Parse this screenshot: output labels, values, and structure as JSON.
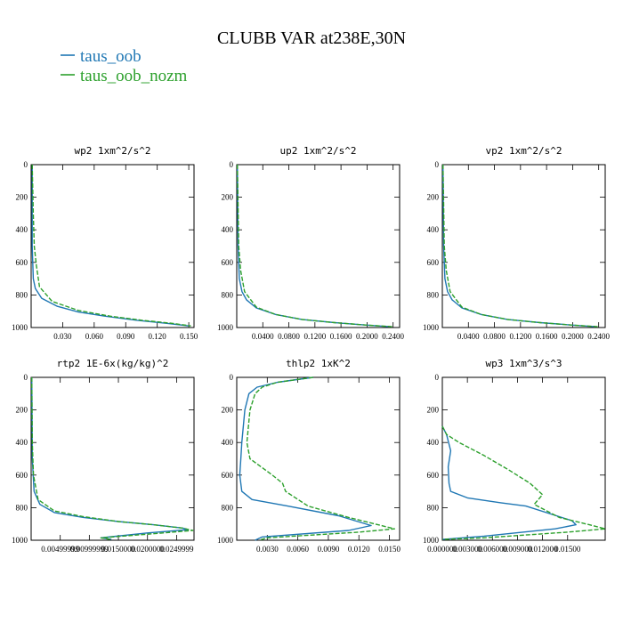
{
  "title": "CLUBB VAR at238E,30N",
  "legend": [
    {
      "label": "taus_oob",
      "color": "#1f77b4"
    },
    {
      "label": "taus_oob_nozm",
      "color": "#2ca02c"
    }
  ],
  "chart_data": [
    {
      "type": "line",
      "title": "wp2   1xm^2/s^2",
      "ylim": [
        1000,
        0
      ],
      "yticks": [
        0,
        200,
        400,
        600,
        800,
        1000
      ],
      "xlim": [
        0,
        0.155
      ],
      "xticks": [
        0.03,
        0.06,
        0.09,
        0.12,
        0.15
      ],
      "xticklabels": [
        "0.030",
        "0.060",
        "0.090",
        "0.120",
        "0.150"
      ],
      "series": [
        {
          "name": "taus_oob",
          "x": [
            0.001,
            0.001,
            0.002,
            0.004,
            0.01,
            0.025,
            0.045,
            0.07,
            0.1,
            0.13,
            0.15
          ],
          "y": [
            0,
            500,
            700,
            760,
            820,
            870,
            905,
            930,
            955,
            975,
            990
          ]
        },
        {
          "name": "taus_oob_nozm",
          "x": [
            0.001,
            0.002,
            0.003,
            0.005,
            0.008,
            0.02,
            0.045,
            0.075,
            0.105,
            0.135,
            0.152
          ],
          "y": [
            0,
            300,
            500,
            620,
            750,
            840,
            895,
            930,
            955,
            975,
            990
          ]
        }
      ]
    },
    {
      "type": "line",
      "title": "up2   1xm^2/s^2",
      "ylim": [
        1000,
        0
      ],
      "yticks": [
        0,
        200,
        400,
        600,
        800,
        1000
      ],
      "xlim": [
        0,
        0.25
      ],
      "xticks": [
        0.04,
        0.08,
        0.12,
        0.16,
        0.2,
        0.24
      ],
      "xticklabels": [
        "0.0400",
        "0.0800",
        "0.1200",
        "0.1600",
        "0.2000",
        "0.2400"
      ],
      "series": [
        {
          "name": "taus_oob",
          "x": [
            0.001,
            0.002,
            0.004,
            0.008,
            0.015,
            0.03,
            0.06,
            0.1,
            0.15,
            0.2,
            0.235
          ],
          "y": [
            0,
            500,
            700,
            780,
            830,
            880,
            920,
            950,
            970,
            985,
            995
          ]
        },
        {
          "name": "taus_oob_nozm",
          "x": [
            0.001,
            0.002,
            0.003,
            0.006,
            0.012,
            0.03,
            0.06,
            0.1,
            0.15,
            0.2,
            0.24
          ],
          "y": [
            0,
            250,
            500,
            650,
            780,
            875,
            920,
            950,
            970,
            985,
            995
          ]
        }
      ]
    },
    {
      "type": "line",
      "title": "vp2   1xm^2/s^2",
      "ylim": [
        1000,
        0
      ],
      "yticks": [
        0,
        200,
        400,
        600,
        800,
        1000
      ],
      "xlim": [
        0,
        0.25
      ],
      "xticks": [
        0.04,
        0.08,
        0.12,
        0.16,
        0.2,
        0.24
      ],
      "xticklabels": [
        "0.0400",
        "0.0800",
        "0.1200",
        "0.1600",
        "0.2000",
        "0.2400"
      ],
      "series": [
        {
          "name": "taus_oob",
          "x": [
            0.001,
            0.002,
            0.004,
            0.008,
            0.015,
            0.03,
            0.06,
            0.1,
            0.15,
            0.2,
            0.235
          ],
          "y": [
            0,
            500,
            700,
            780,
            830,
            880,
            920,
            950,
            970,
            985,
            995
          ]
        },
        {
          "name": "taus_oob_nozm",
          "x": [
            0.001,
            0.002,
            0.003,
            0.006,
            0.012,
            0.03,
            0.06,
            0.1,
            0.15,
            0.2,
            0.24
          ],
          "y": [
            0,
            250,
            500,
            650,
            780,
            875,
            920,
            950,
            970,
            985,
            995
          ]
        }
      ]
    },
    {
      "type": "line",
      "title": "rtp2   1E-6x(kg/kg)^2",
      "ylim": [
        1000,
        0
      ],
      "yticks": [
        0,
        200,
        400,
        600,
        800,
        1000
      ],
      "xlim": [
        0,
        0.028
      ],
      "xticks": [
        0.005,
        0.01,
        0.015,
        0.02,
        0.025
      ],
      "xticklabels": [
        "0.00499999",
        "0.00999999",
        "0.0150000",
        "0.0200000",
        "0.0249999"
      ],
      "series": [
        {
          "name": "taus_oob",
          "x": [
            0.0001,
            0.0002,
            0.0005,
            0.0015,
            0.004,
            0.009,
            0.015,
            0.021,
            0.026,
            0.027,
            0.02,
            0.012,
            0.0138
          ],
          "y": [
            0,
            500,
            700,
            780,
            830,
            860,
            885,
            905,
            925,
            935,
            955,
            985,
            995
          ]
        },
        {
          "name": "taus_oob_nozm",
          "x": [
            0.0001,
            0.0002,
            0.0004,
            0.0012,
            0.004,
            0.009,
            0.015,
            0.021,
            0.026,
            0.0278,
            0.021,
            0.012,
            0.0136
          ],
          "y": [
            0,
            400,
            600,
            750,
            820,
            855,
            885,
            905,
            925,
            940,
            960,
            985,
            995
          ]
        }
      ]
    },
    {
      "type": "line",
      "title": "thlp2   1xK^2",
      "ylim": [
        1000,
        0
      ],
      "yticks": [
        0,
        200,
        400,
        600,
        800,
        1000
      ],
      "xlim": [
        0,
        0.016
      ],
      "xticks": [
        0.003,
        0.006,
        0.009,
        0.012,
        0.015
      ],
      "xticklabels": [
        "0.0030",
        "0.0060",
        "0.0090",
        "0.0120",
        "0.0150"
      ],
      "series": [
        {
          "name": "taus_oob",
          "x": [
            0.0075,
            0.004,
            0.002,
            0.0012,
            0.0008,
            0.0005,
            0.0004,
            0.0003,
            0.0005,
            0.0015,
            0.005,
            0.01,
            0.0132,
            0.011,
            0.0025,
            0.0018
          ],
          "y": [
            0,
            30,
            60,
            100,
            200,
            400,
            500,
            600,
            700,
            750,
            790,
            850,
            910,
            940,
            980,
            1000
          ]
        },
        {
          "name": "taus_oob_nozm",
          "x": [
            0.0075,
            0.004,
            0.0025,
            0.0018,
            0.0013,
            0.001,
            0.0013,
            0.0035,
            0.0045,
            0.0048,
            0.007,
            0.011,
            0.0155,
            0.012,
            0.003,
            0.0022
          ],
          "y": [
            0,
            30,
            60,
            100,
            200,
            400,
            500,
            600,
            650,
            700,
            790,
            860,
            930,
            950,
            985,
            1000
          ]
        }
      ]
    },
    {
      "type": "line",
      "title": "wp3   1xm^3/s^3",
      "ylim": [
        1000,
        0
      ],
      "yticks": [
        0,
        200,
        400,
        600,
        800,
        1000
      ],
      "xlim": [
        0,
        0.0195
      ],
      "xticks": [
        0,
        0.003,
        0.006,
        0.009,
        0.012,
        0.015
      ],
      "xticklabels": [
        "0.000000",
        "0.003000",
        "0.006000",
        "0.009000",
        "0.012000",
        "0.01500"
      ],
      "series": [
        {
          "name": "taus_oob",
          "x": [
            0.0,
            0.0005,
            0.001,
            0.0007,
            0.0008,
            0.001,
            0.003,
            0.007,
            0.01,
            0.0155,
            0.016,
            0.0135,
            0.005,
            0.0
          ],
          "y": [
            300,
            350,
            450,
            550,
            650,
            700,
            740,
            770,
            790,
            880,
            905,
            930,
            975,
            995
          ]
        },
        {
          "name": "taus_oob_nozm",
          "x": [
            0.0,
            0.0005,
            0.002,
            0.005,
            0.008,
            0.0105,
            0.012,
            0.011,
            0.014,
            0.018,
            0.0195,
            0.015,
            0.005,
            0.0
          ],
          "y": [
            300,
            350,
            400,
            480,
            570,
            650,
            720,
            780,
            860,
            910,
            930,
            950,
            985,
            995
          ]
        }
      ]
    }
  ]
}
